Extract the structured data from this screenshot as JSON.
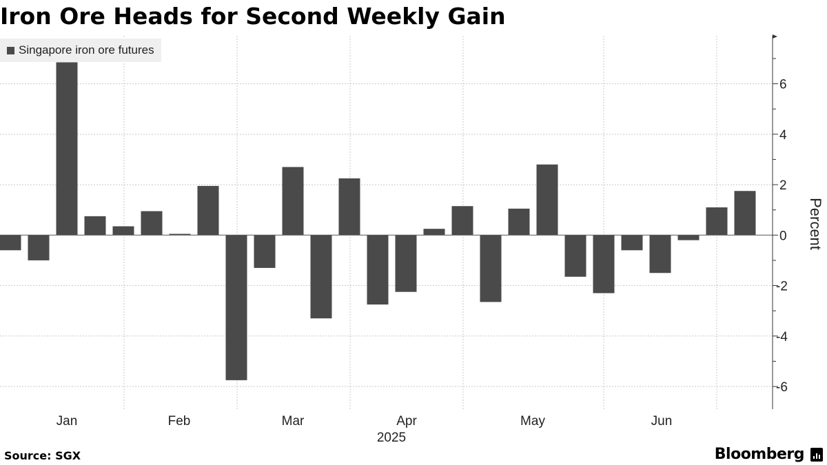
{
  "title": "Iron Ore Heads for Second Weekly Gain",
  "footer": {
    "source": "Source: SGX",
    "brand": "Bloomberg"
  },
  "colors": {
    "bar": "#4a4a4a",
    "grid": "#c8c8c8",
    "axis": "#333333",
    "legend_bg": "#efefef"
  },
  "chart_data": {
    "type": "bar",
    "title": "Iron Ore Heads for Second Weekly Gain",
    "legend": {
      "entries": [
        "Singapore iron ore futures"
      ],
      "placement": "top-left"
    },
    "series": [
      {
        "name": "Singapore iron ore futures",
        "color": "#4a4a4a",
        "values": [
          -0.6,
          -1.0,
          6.85,
          0.75,
          0.35,
          0.95,
          0.05,
          1.95,
          -5.75,
          -1.3,
          2.7,
          -3.3,
          2.25,
          -2.75,
          -2.25,
          0.25,
          1.15,
          -2.65,
          1.05,
          2.8,
          -1.65,
          -2.3,
          -0.6,
          -1.5,
          -0.2,
          1.1,
          1.75
        ]
      }
    ],
    "xlabel": "2025",
    "ylabel": "Percent",
    "x_ticks": [
      "Jan",
      "Feb",
      "Mar",
      "Apr",
      "May",
      "Jun"
    ],
    "x_year_label": "2025",
    "y_ticks": [
      -6,
      -4,
      -2,
      0,
      2,
      4,
      6
    ],
    "ylim": [
      -6.9,
      7.9
    ],
    "grid": true,
    "y_axis_position": "right"
  }
}
